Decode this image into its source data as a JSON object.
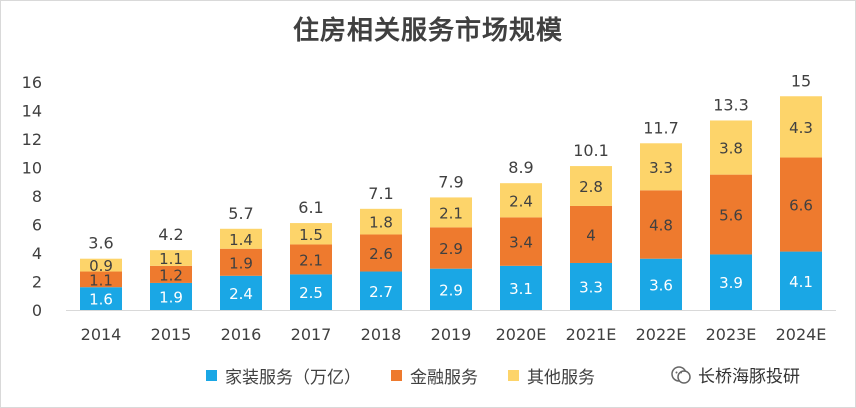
{
  "chart_data": {
    "type": "bar",
    "stacked": true,
    "title": "住房相关服务市场规模",
    "categories": [
      "2014",
      "2015",
      "2016",
      "2017",
      "2018",
      "2019",
      "2020E",
      "2021E",
      "2022E",
      "2023E",
      "2024E"
    ],
    "series": [
      {
        "name": "家装服务（万亿）",
        "color": "#1aa7e5",
        "values": [
          1.6,
          1.9,
          2.4,
          2.5,
          2.7,
          2.9,
          3.1,
          3.3,
          3.6,
          3.9,
          4.1
        ]
      },
      {
        "name": "金融服务",
        "color": "#ee7a2e",
        "values": [
          1.1,
          1.2,
          1.9,
          2.1,
          2.6,
          2.9,
          3.4,
          4,
          4.8,
          5.6,
          6.6
        ]
      },
      {
        "name": "其他服务",
        "color": "#fdd46a",
        "values": [
          0.9,
          1.1,
          1.4,
          1.5,
          1.8,
          2.1,
          2.4,
          2.8,
          3.3,
          3.8,
          4.3
        ]
      }
    ],
    "totals": [
      3.6,
      4.2,
      5.7,
      6.1,
      7.1,
      7.9,
      8.9,
      10.1,
      11.7,
      13.3,
      15
    ],
    "ylim": [
      0,
      16
    ],
    "yticks": [
      0,
      2,
      4,
      6,
      8,
      10,
      12,
      14,
      16
    ],
    "legend_position": "bottom"
  },
  "watermark": {
    "text": "长桥海豚投研"
  }
}
